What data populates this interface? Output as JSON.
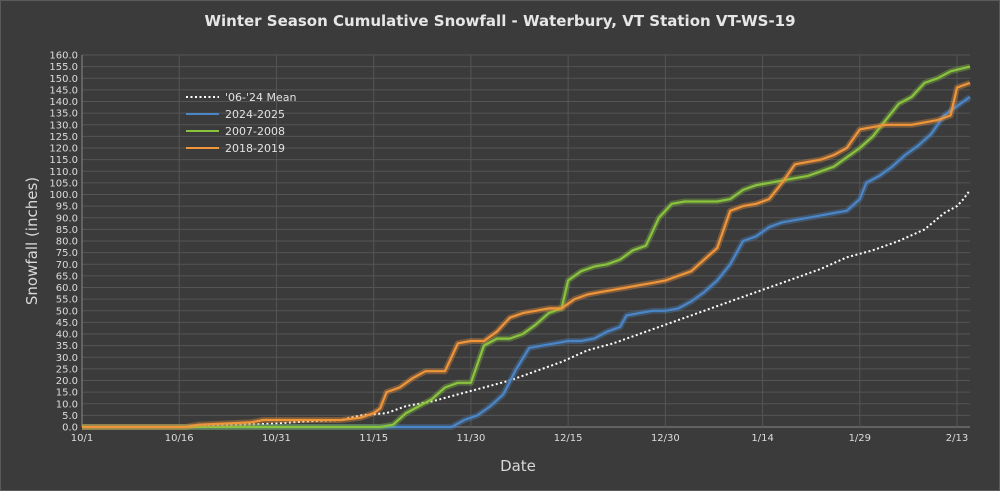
{
  "chart_data": {
    "type": "line",
    "title": "Winter Season Cumulative Snowfall - Waterbury, VT Station VT-WS-19",
    "xlabel": "Date",
    "ylabel": "Snowfall (inches)",
    "ylim": [
      0,
      160
    ],
    "yticks": [
      "0.0",
      "5.0",
      "10.0",
      "15.0",
      "20.0",
      "25.0",
      "30.0",
      "35.0",
      "40.0",
      "45.0",
      "50.0",
      "55.0",
      "60.0",
      "65.0",
      "70.0",
      "75.0",
      "80.0",
      "85.0",
      "90.0",
      "95.0",
      "100.0",
      "105.0",
      "110.0",
      "115.0",
      "120.0",
      "125.0",
      "130.0",
      "135.0",
      "140.0",
      "145.0",
      "150.0",
      "155.0",
      "160.0"
    ],
    "xticks": [
      "10/1",
      "10/16",
      "10/31",
      "11/15",
      "11/30",
      "12/15",
      "12/30",
      "1/14",
      "1/29",
      "2/13"
    ],
    "x_unit": "days since 10/1",
    "xlim": [
      0,
      137
    ],
    "grid": true,
    "legend_position": "top-left",
    "series": [
      {
        "name": "'06-'24 Mean",
        "color": "#ffffff",
        "style": "dotted",
        "points": [
          [
            0,
            0
          ],
          [
            15,
            0
          ],
          [
            20,
            0.5
          ],
          [
            25,
            1
          ],
          [
            30,
            1.5
          ],
          [
            35,
            2.5
          ],
          [
            40,
            3
          ],
          [
            43,
            5
          ],
          [
            47,
            6
          ],
          [
            50,
            9
          ],
          [
            54,
            11
          ],
          [
            58,
            14
          ],
          [
            62,
            17
          ],
          [
            66,
            20
          ],
          [
            70,
            24
          ],
          [
            74,
            28
          ],
          [
            78,
            33
          ],
          [
            82,
            36
          ],
          [
            86,
            40
          ],
          [
            90,
            44
          ],
          [
            94,
            48
          ],
          [
            98,
            52
          ],
          [
            102,
            56
          ],
          [
            106,
            60
          ],
          [
            110,
            64
          ],
          [
            114,
            68
          ],
          [
            118,
            73
          ],
          [
            122,
            76
          ],
          [
            126,
            80
          ],
          [
            130,
            85
          ],
          [
            133,
            92
          ],
          [
            135,
            95
          ],
          [
            136,
            98
          ],
          [
            137,
            102
          ]
        ]
      },
      {
        "name": "2024-2025",
        "color": "#4a86c8",
        "style": "solid",
        "points": [
          [
            0,
            0
          ],
          [
            57,
            0
          ],
          [
            59,
            3
          ],
          [
            61,
            5
          ],
          [
            63,
            9
          ],
          [
            65,
            14
          ],
          [
            67,
            25
          ],
          [
            69,
            34
          ],
          [
            71,
            35
          ],
          [
            73,
            36
          ],
          [
            75,
            37
          ],
          [
            77,
            37
          ],
          [
            79,
            38
          ],
          [
            81,
            41
          ],
          [
            83,
            43
          ],
          [
            84,
            48
          ],
          [
            86,
            49
          ],
          [
            88,
            50
          ],
          [
            90,
            50
          ],
          [
            92,
            51
          ],
          [
            94,
            54
          ],
          [
            96,
            58
          ],
          [
            98,
            63
          ],
          [
            100,
            70
          ],
          [
            102,
            80
          ],
          [
            104,
            82
          ],
          [
            106,
            86
          ],
          [
            108,
            88
          ],
          [
            110,
            89
          ],
          [
            112,
            90
          ],
          [
            114,
            91
          ],
          [
            116,
            92
          ],
          [
            118,
            93
          ],
          [
            120,
            98
          ],
          [
            121,
            105
          ],
          [
            123,
            108
          ],
          [
            125,
            112
          ],
          [
            127,
            117
          ],
          [
            129,
            121
          ],
          [
            131,
            126
          ],
          [
            133,
            134
          ],
          [
            135,
            138
          ],
          [
            137,
            142
          ]
        ]
      },
      {
        "name": "2007-2008",
        "color": "#8ac43f",
        "style": "solid",
        "points": [
          [
            0,
            0
          ],
          [
            46,
            0
          ],
          [
            48,
            1
          ],
          [
            50,
            6
          ],
          [
            52,
            9
          ],
          [
            54,
            12
          ],
          [
            56,
            17
          ],
          [
            58,
            19
          ],
          [
            60,
            19
          ],
          [
            62,
            35
          ],
          [
            64,
            38
          ],
          [
            66,
            38
          ],
          [
            68,
            40
          ],
          [
            70,
            44
          ],
          [
            72,
            49
          ],
          [
            74,
            51
          ],
          [
            75,
            63
          ],
          [
            77,
            67
          ],
          [
            79,
            69
          ],
          [
            81,
            70
          ],
          [
            83,
            72
          ],
          [
            85,
            76
          ],
          [
            87,
            78
          ],
          [
            89,
            90
          ],
          [
            91,
            96
          ],
          [
            93,
            97
          ],
          [
            96,
            97
          ],
          [
            98,
            97
          ],
          [
            100,
            98
          ],
          [
            102,
            102
          ],
          [
            104,
            104
          ],
          [
            106,
            105
          ],
          [
            108,
            106
          ],
          [
            110,
            107
          ],
          [
            112,
            108
          ],
          [
            114,
            110
          ],
          [
            116,
            112
          ],
          [
            118,
            116
          ],
          [
            120,
            120
          ],
          [
            122,
            125
          ],
          [
            124,
            132
          ],
          [
            126,
            139
          ],
          [
            128,
            142
          ],
          [
            130,
            148
          ],
          [
            132,
            150
          ],
          [
            134,
            153
          ],
          [
            137,
            155
          ]
        ]
      },
      {
        "name": "2018-2019",
        "color": "#f0953a",
        "style": "solid",
        "points": [
          [
            0,
            0
          ],
          [
            16,
            0
          ],
          [
            18,
            1
          ],
          [
            26,
            2
          ],
          [
            28,
            3
          ],
          [
            40,
            3
          ],
          [
            43,
            4
          ],
          [
            45,
            6
          ],
          [
            46,
            8
          ],
          [
            47,
            15
          ],
          [
            49,
            17
          ],
          [
            51,
            21
          ],
          [
            53,
            24
          ],
          [
            56,
            24
          ],
          [
            58,
            36
          ],
          [
            60,
            37
          ],
          [
            62,
            37
          ],
          [
            64,
            41
          ],
          [
            66,
            47
          ],
          [
            68,
            49
          ],
          [
            70,
            50
          ],
          [
            72,
            51
          ],
          [
            74,
            51
          ],
          [
            76,
            55
          ],
          [
            78,
            57
          ],
          [
            80,
            58
          ],
          [
            82,
            59
          ],
          [
            84,
            60
          ],
          [
            86,
            61
          ],
          [
            88,
            62
          ],
          [
            90,
            63
          ],
          [
            92,
            65
          ],
          [
            94,
            67
          ],
          [
            96,
            72
          ],
          [
            98,
            77
          ],
          [
            100,
            93
          ],
          [
            102,
            95
          ],
          [
            104,
            96
          ],
          [
            106,
            98
          ],
          [
            108,
            105
          ],
          [
            110,
            113
          ],
          [
            112,
            114
          ],
          [
            114,
            115
          ],
          [
            116,
            117
          ],
          [
            118,
            120
          ],
          [
            120,
            128
          ],
          [
            122,
            129
          ],
          [
            124,
            130
          ],
          [
            126,
            130
          ],
          [
            128,
            130
          ],
          [
            130,
            131
          ],
          [
            132,
            132
          ],
          [
            134,
            134
          ],
          [
            135,
            146
          ],
          [
            137,
            148
          ]
        ]
      }
    ]
  }
}
